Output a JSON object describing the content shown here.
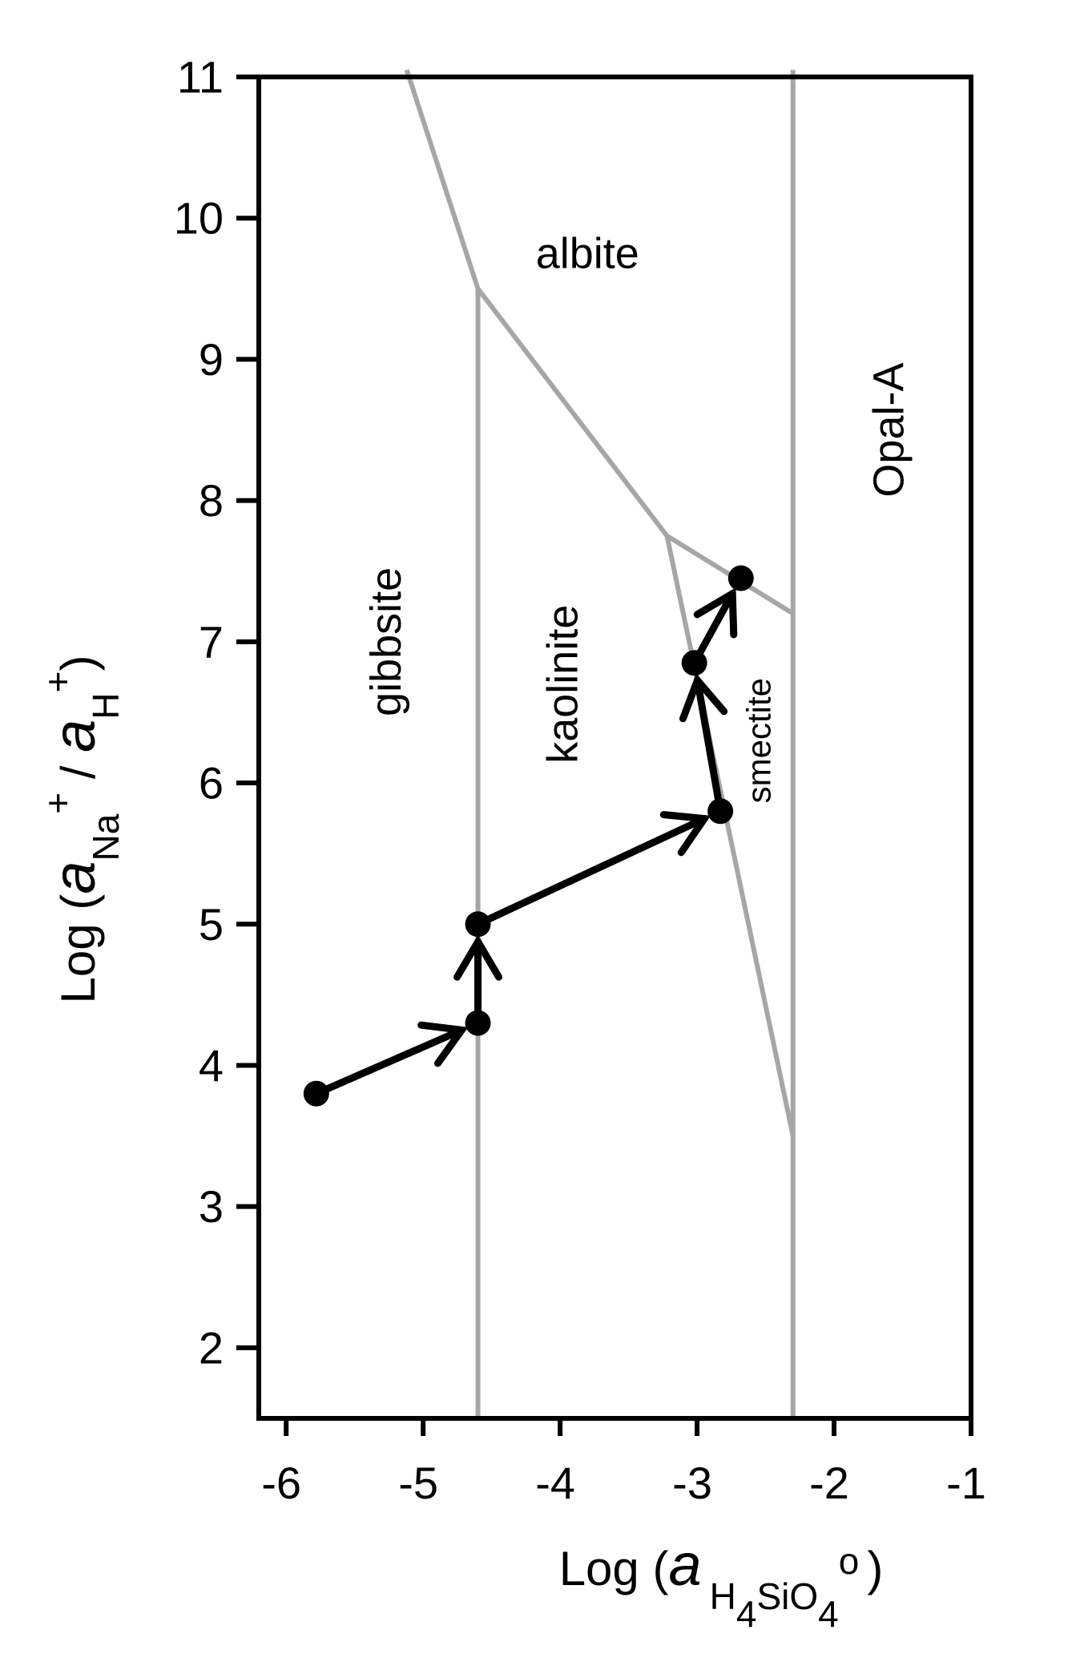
{
  "chart_data": {
    "type": "line",
    "title": "",
    "xlabel": {
      "prefix": "Log (",
      "italic": "a",
      "sub1": "H",
      "sub2": "4",
      "sub3": "SiO",
      "sub4": "4",
      "sup": "o",
      "suffix": ")"
    },
    "ylabel": {
      "prefix": "Log (",
      "italic1": "a",
      "sub1": "Na",
      "sup1": "+",
      "mid": " / ",
      "italic2": "a",
      "sub2": "H",
      "sup2": "+",
      "suffix": ")"
    },
    "xlim": [
      -6.2,
      -1
    ],
    "ylim": [
      1.5,
      11
    ],
    "x_ticks": [
      "-6",
      "-5",
      "-4",
      "-3",
      "-2",
      "-1"
    ],
    "y_ticks": [
      "2",
      "3",
      "4",
      "5",
      "6",
      "7",
      "8",
      "9",
      "10",
      "11"
    ],
    "grid": false,
    "colors": {
      "boundary": "#a6a6a6",
      "path": "#000000",
      "axis": "#000000"
    },
    "boundaries": [
      {
        "x": [
          -5.12,
          -4.6,
          -3.22,
          -2.3
        ],
        "y": [
          11.05,
          9.5,
          7.75,
          7.2
        ]
      },
      {
        "x": [
          -4.6,
          -4.6
        ],
        "y": [
          9.5,
          1.5
        ]
      },
      {
        "x": [
          -3.22,
          -2.3
        ],
        "y": [
          7.75,
          3.5
        ]
      },
      {
        "x": [
          -2.3,
          -2.3
        ],
        "y": [
          11.05,
          1.5
        ]
      }
    ],
    "path": {
      "x": [
        -5.78,
        -4.6,
        -4.6,
        -2.83,
        -3.02,
        -2.68
      ],
      "y": [
        3.8,
        4.3,
        5.0,
        5.8,
        6.85,
        7.45
      ]
    },
    "region_labels": [
      {
        "text": "albite",
        "x": -3.8,
        "y": 9.75,
        "rotate": 0,
        "size": "large"
      },
      {
        "text": "Opal-A",
        "x": -1.6,
        "y": 8.5,
        "rotate": -90,
        "size": "large"
      },
      {
        "text": "gibbsite",
        "x": -5.27,
        "y": 7.0,
        "rotate": -90,
        "size": "large"
      },
      {
        "text": "kaolinite",
        "x": -3.98,
        "y": 6.7,
        "rotate": -90,
        "size": "large"
      },
      {
        "text": "smectite",
        "x": -2.55,
        "y": 6.3,
        "rotate": -90,
        "size": "small"
      }
    ]
  }
}
